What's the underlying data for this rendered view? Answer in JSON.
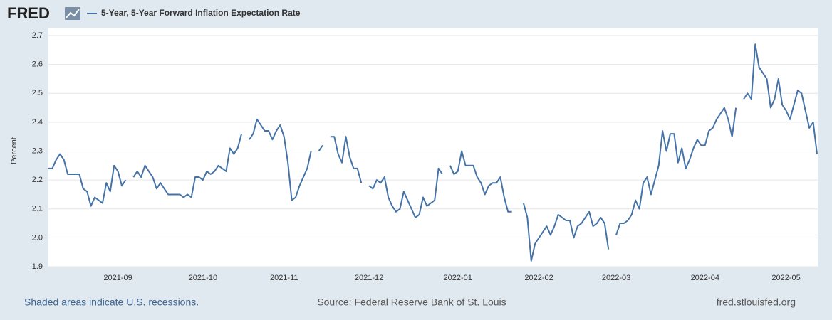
{
  "chart_data": {
    "type": "line",
    "logo": "FRED",
    "ylabel": "Percent",
    "note": "Shaded areas indicate U.S. recessions.",
    "source": "Source: Federal Reserve Bank of St. Louis",
    "site": "fred.stlouisfed.org",
    "grid": true,
    "ylim": [
      1.9,
      2.7
    ],
    "yticks": [
      1.9,
      {
        "value": 2,
        "label": "2.0"
      },
      2.1,
      2.2,
      2.3,
      2.4,
      2.5,
      2.6,
      2.7
    ],
    "categories": [
      null,
      null,
      null,
      null,
      null,
      null,
      null,
      null,
      null,
      null,
      null,
      null,
      null,
      null,
      null,
      null,
      null,
      null,
      "2021-09",
      null,
      null,
      null,
      null,
      null,
      null,
      null,
      null,
      null,
      null,
      null,
      null,
      null,
      null,
      null,
      null,
      null,
      null,
      null,
      null,
      null,
      "2021-10",
      null,
      null,
      null,
      null,
      null,
      null,
      null,
      null,
      null,
      null,
      null,
      null,
      null,
      null,
      null,
      null,
      null,
      null,
      null,
      null,
      "2021-11",
      null,
      null,
      null,
      null,
      null,
      null,
      null,
      null,
      null,
      null,
      null,
      null,
      null,
      null,
      null,
      null,
      null,
      null,
      null,
      null,
      null,
      "2021-12",
      null,
      null,
      null,
      null,
      null,
      null,
      null,
      null,
      null,
      null,
      null,
      null,
      null,
      null,
      null,
      null,
      null,
      null,
      null,
      null,
      null,
      null,
      "2022-01",
      null,
      null,
      null,
      null,
      null,
      null,
      null,
      null,
      null,
      null,
      null,
      null,
      null,
      null,
      null,
      null,
      null,
      null,
      null,
      null,
      "2022-02",
      null,
      null,
      null,
      null,
      null,
      null,
      null,
      null,
      null,
      null,
      null,
      null,
      null,
      null,
      null,
      null,
      null,
      null,
      null,
      "2022-03",
      null,
      null,
      null,
      null,
      null,
      null,
      null,
      null,
      null,
      null,
      null,
      null,
      null,
      null,
      null,
      null,
      null,
      null,
      null,
      null,
      null,
      null,
      "2022-04",
      null,
      null,
      null,
      null,
      null,
      null,
      null,
      null,
      null,
      null,
      null,
      null,
      null,
      null,
      null,
      null,
      null,
      null,
      null,
      null,
      "2022-05",
      null,
      null,
      null,
      null,
      null,
      null,
      null,
      null
    ],
    "series": [
      {
        "name": "5-Year, 5-Year Forward Inflation Expectation Rate",
        "color": "#4572a7",
        "values": [
          2.24,
          2.24,
          2.27,
          2.29,
          2.27,
          2.22,
          2.22,
          2.22,
          2.22,
          2.17,
          2.16,
          2.11,
          2.14,
          2.13,
          2.12,
          2.19,
          2.16,
          2.25,
          2.23,
          2.18,
          2.2,
          null,
          2.21,
          2.23,
          2.21,
          2.25,
          2.23,
          2.21,
          2.17,
          2.19,
          2.17,
          2.15,
          2.15,
          2.15,
          2.15,
          2.14,
          2.15,
          2.14,
          2.21,
          2.21,
          2.2,
          2.23,
          2.22,
          2.23,
          2.25,
          2.24,
          2.23,
          2.31,
          2.29,
          2.31,
          2.36,
          null,
          2.34,
          2.36,
          2.41,
          2.39,
          2.37,
          2.37,
          2.34,
          2.37,
          2.39,
          2.35,
          2.26,
          2.13,
          2.14,
          2.18,
          2.21,
          2.24,
          2.3,
          null,
          2.3,
          2.32,
          null,
          2.35,
          2.35,
          2.29,
          2.26,
          2.35,
          2.28,
          2.24,
          2.24,
          2.19,
          null,
          2.18,
          2.17,
          2.2,
          2.19,
          2.21,
          2.14,
          2.11,
          2.09,
          2.1,
          2.16,
          2.13,
          2.1,
          2.07,
          2.08,
          2.14,
          2.11,
          2.12,
          2.13,
          2.24,
          2.22,
          null,
          2.25,
          2.22,
          2.23,
          2.3,
          2.25,
          2.25,
          2.25,
          2.21,
          2.19,
          2.15,
          2.18,
          2.19,
          2.19,
          2.21,
          2.14,
          2.09,
          2.09,
          null,
          null,
          2.12,
          2.07,
          1.92,
          1.98,
          2.0,
          2.02,
          2.04,
          2.01,
          2.04,
          2.08,
          2.07,
          2.06,
          2.06,
          2.0,
          2.04,
          2.05,
          2.07,
          2.09,
          2.04,
          2.05,
          2.07,
          2.05,
          1.96,
          null,
          2.01,
          2.05,
          2.05,
          2.06,
          2.08,
          2.13,
          2.1,
          2.19,
          2.21,
          2.15,
          2.2,
          2.25,
          2.37,
          2.3,
          2.36,
          2.36,
          2.26,
          2.31,
          2.24,
          2.27,
          2.31,
          2.34,
          2.32,
          2.32,
          2.37,
          2.38,
          2.41,
          2.43,
          2.45,
          2.41,
          2.35,
          2.45,
          null,
          2.48,
          2.5,
          2.48,
          2.67,
          2.59,
          2.57,
          2.55,
          2.45,
          2.48,
          2.55,
          2.46,
          2.44,
          2.41,
          2.46,
          2.51,
          2.5,
          2.44,
          2.38,
          2.4,
          2.29
        ]
      }
    ]
  }
}
